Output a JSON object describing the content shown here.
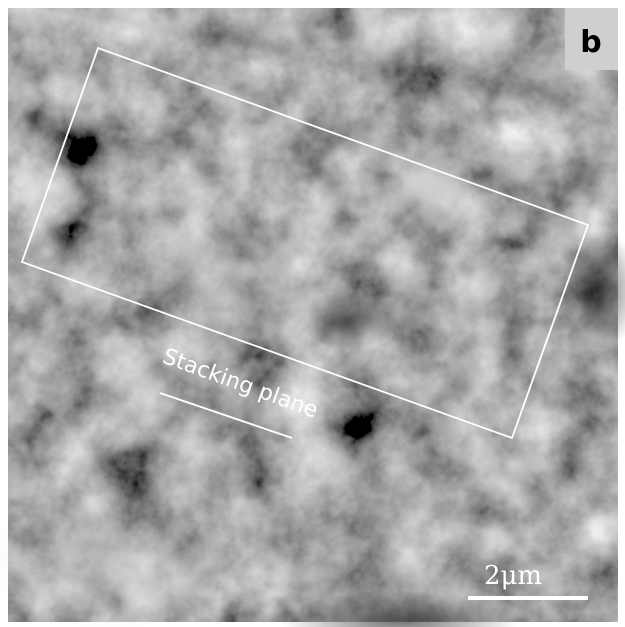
{
  "figure": {
    "panel_label": "b",
    "annotation": "Stacking plane",
    "scale_bar": "2μm"
  }
}
